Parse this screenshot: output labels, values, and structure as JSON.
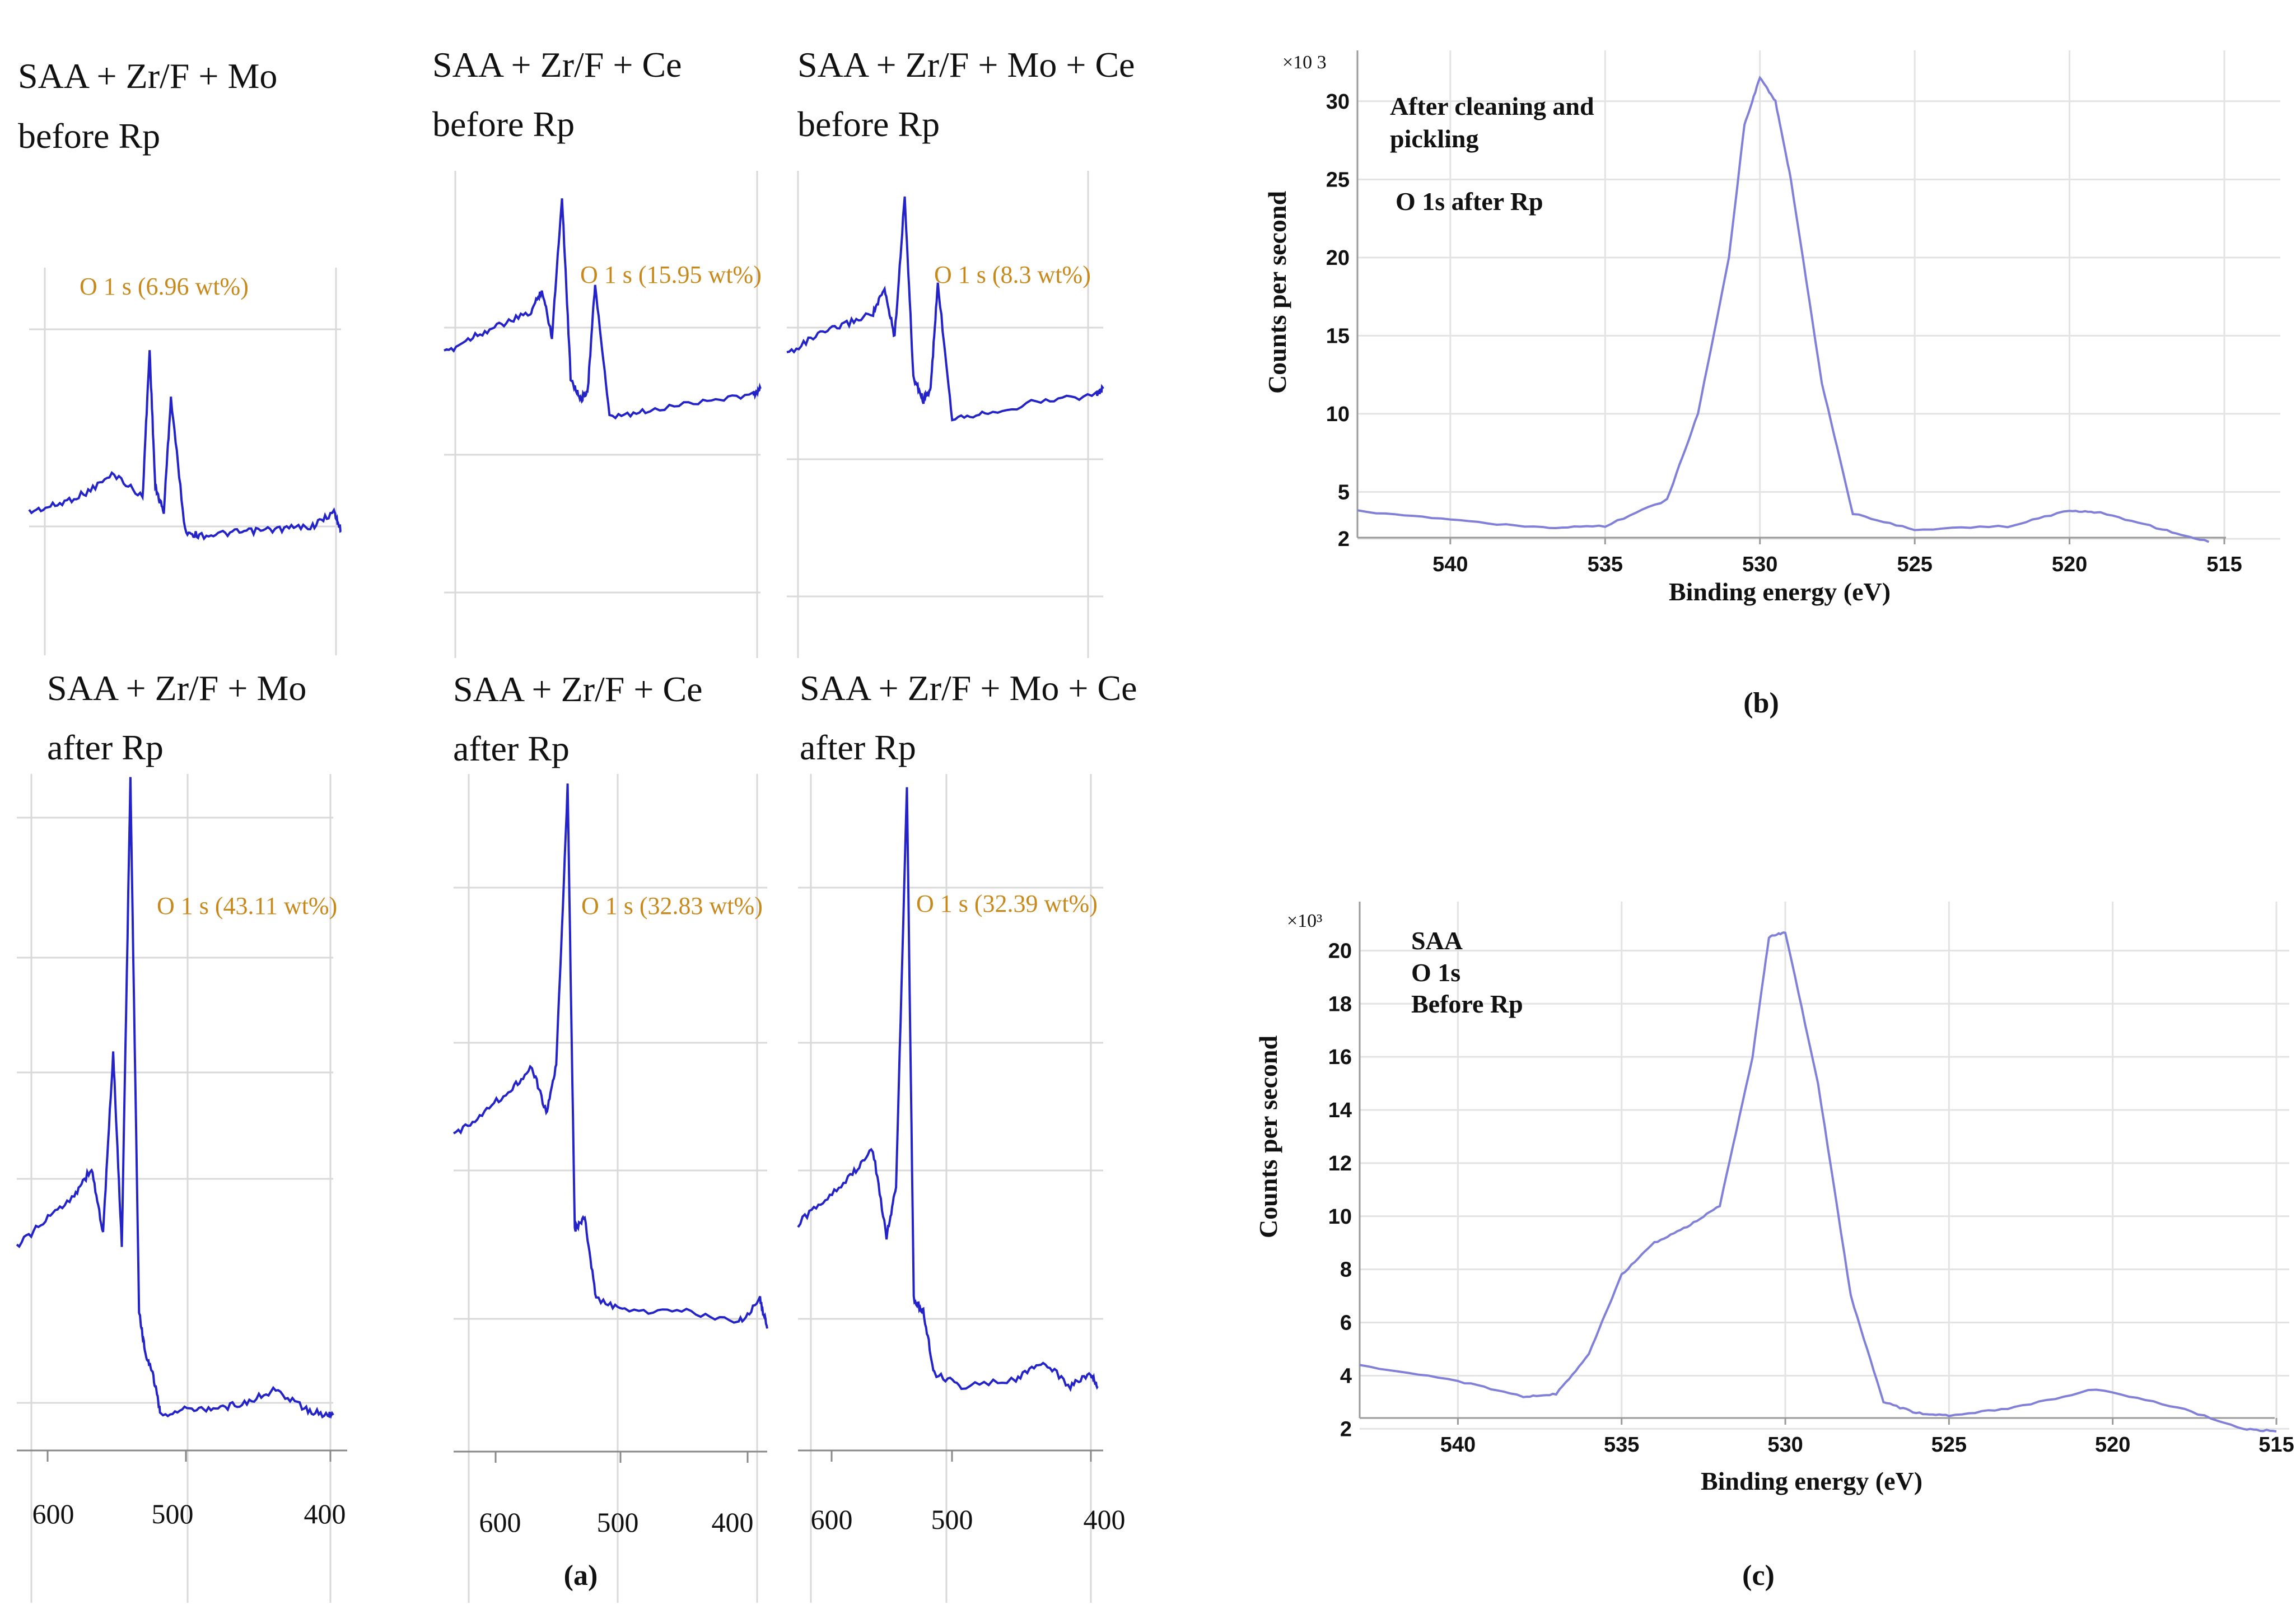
{
  "figure": {
    "caption_a": "(a)",
    "caption_b": "(b)",
    "caption_c": "(c)"
  },
  "panel_a": {
    "x_ticks": [
      "600",
      "500",
      "400"
    ],
    "plots": [
      {
        "title1": "SAA + Zr/F + Mo",
        "title2": "before Rp",
        "peak_label": "O 1 s (6.96 wt%)"
      },
      {
        "title1": "SAA + Zr/F + Ce",
        "title2": "before Rp",
        "peak_label": "O 1 s (15.95 wt%)"
      },
      {
        "title1": "SAA + Zr/F + Mo + Ce",
        "title2": "before Rp",
        "peak_label": "O 1 s (8.3 wt%)"
      },
      {
        "title1": "SAA + Zr/F + Mo",
        "title2": "after Rp",
        "peak_label": "O 1 s (43.11 wt%)"
      },
      {
        "title1": "SAA + Zr/F + Ce",
        "title2": "after Rp",
        "peak_label": "O 1 s (32.83 wt%)"
      },
      {
        "title1": "SAA + Zr/F + Mo + Ce",
        "title2": "after Rp",
        "peak_label": "O 1 s (32.39 wt%)"
      }
    ]
  },
  "panel_b": {
    "multiplier": "×10 3",
    "ylabel": "Counts per second",
    "xlabel": "Binding energy (eV)",
    "ann1": "After cleaning and",
    "ann2": "pickling",
    "ann3": "O 1s after Rp",
    "y_ticks": [
      "2",
      "5",
      "10",
      "15",
      "20",
      "25",
      "30"
    ],
    "x_ticks": [
      "540",
      "535",
      "530",
      "525",
      "520",
      "515"
    ]
  },
  "panel_c": {
    "multiplier": "×10³",
    "ylabel": "Counts per second",
    "xlabel": "Binding energy (eV)",
    "ann1": "SAA",
    "ann2": "O 1s",
    "ann3": "Before Rp",
    "y_ticks": [
      "2",
      "4",
      "6",
      "8",
      "10",
      "12",
      "14",
      "16",
      "18",
      "20"
    ],
    "x_ticks": [
      "540",
      "535",
      "530",
      "525",
      "520",
      "515"
    ]
  },
  "chart_data": [
    {
      "type": "line",
      "title": "SAA + Zr/F + Mo before Rp",
      "xlabel": "Binding energy (eV)",
      "annotation": "O 1 s (6.96 wt%)",
      "x": [
        620,
        600,
        580,
        560,
        540,
        535,
        531,
        525,
        520,
        510,
        500,
        480,
        460,
        440,
        420,
        405,
        400
      ],
      "y": [
        12,
        15,
        20,
        28,
        18,
        80,
        22,
        12,
        60,
        4,
        2,
        3,
        4,
        5,
        6,
        12,
        4
      ],
      "ylim": [
        0,
        100
      ]
    },
    {
      "type": "line",
      "title": "SAA + Zr/F + Ce before Rp",
      "xlabel": "Binding energy (eV)",
      "annotation": "O 1 s (15.95 wt%)",
      "x": [
        620,
        600,
        580,
        560,
        552,
        545,
        538,
        532,
        525,
        520,
        515,
        505,
        480,
        440,
        405,
        400
      ],
      "y": [
        42,
        48,
        52,
        56,
        64,
        48,
        96,
        34,
        26,
        30,
        66,
        20,
        22,
        26,
        28,
        30
      ],
      "ylim": [
        0,
        100
      ]
    },
    {
      "type": "line",
      "title": "SAA + Zr/F + Mo + Ce before Rp",
      "xlabel": "Binding energy (eV)",
      "annotation": "O 1 s (8.3 wt%)",
      "x": [
        620,
        600,
        580,
        560,
        552,
        545,
        538,
        532,
        525,
        520,
        515,
        505,
        480,
        440,
        405,
        400
      ],
      "y": [
        42,
        48,
        52,
        56,
        64,
        48,
        96,
        34,
        26,
        30,
        66,
        20,
        22,
        26,
        28,
        30
      ],
      "ylim": [
        0,
        100
      ]
    },
    {
      "type": "line",
      "title": "SAA + Zr/F + Mo after Rp",
      "xlabel": "Binding energy (eV)",
      "annotation": "O 1 s (43.11 wt%)",
      "x": [
        620,
        600,
        580,
        568,
        560,
        553,
        547,
        541,
        535,
        531,
        525,
        520,
        500,
        480,
        460,
        440,
        420,
        405,
        400
      ],
      "y": [
        28,
        32,
        36,
        40,
        30,
        58,
        28,
        100,
        18,
        12,
        8,
        2,
        3,
        3,
        4,
        6,
        3,
        2,
        2
      ],
      "ylim": [
        0,
        100
      ]
    },
    {
      "type": "line",
      "title": "SAA + Zr/F + Ce after Rp",
      "xlabel": "Binding energy (eV)",
      "annotation": "O 1 s (32.83 wt%)",
      "x": [
        620,
        600,
        580,
        565,
        555,
        548,
        540,
        535,
        528,
        520,
        500,
        460,
        420,
        405,
        400
      ],
      "y": [
        40,
        44,
        48,
        52,
        44,
        52,
        100,
        24,
        26,
        12,
        10,
        10,
        8,
        12,
        7
      ],
      "ylim": [
        0,
        100
      ]
    },
    {
      "type": "line",
      "title": "SAA + Zr/F + Mo + Ce after Rp",
      "xlabel": "Binding energy (eV)",
      "annotation": "O 1 s (32.39 wt%)",
      "x": [
        620,
        600,
        580,
        565,
        555,
        548,
        540,
        535,
        528,
        520,
        500,
        460,
        440,
        420,
        405,
        400
      ],
      "y": [
        30,
        34,
        38,
        42,
        28,
        36,
        100,
        18,
        16,
        6,
        4,
        5,
        8,
        4,
        6,
        4
      ],
      "ylim": [
        0,
        100
      ]
    },
    {
      "type": "line",
      "title": "O 1s after Rp (After cleaning and pickling)",
      "xlabel": "Binding energy (eV)",
      "ylabel": "Counts per second ×10^3",
      "x": [
        543,
        540,
        537,
        535,
        533,
        532,
        531,
        530.5,
        530,
        529.5,
        529,
        528,
        527,
        525,
        522,
        520,
        519,
        517,
        515.5
      ],
      "y": [
        3.8,
        3.2,
        2.7,
        2.8,
        4.5,
        10,
        20,
        28.5,
        31.5,
        30,
        25,
        12,
        3.6,
        2.6,
        2.8,
        3.8,
        3.7,
        2.6,
        1.8
      ],
      "xlim": [
        543,
        515
      ],
      "ylim": [
        1,
        32
      ]
    },
    {
      "type": "line",
      "title": "SAA O 1s Before Rp",
      "xlabel": "Binding energy (eV)",
      "ylabel": "Counts per second ×10^3",
      "x": [
        543,
        540,
        538,
        537,
        536,
        535,
        534,
        533,
        532,
        531,
        530.5,
        530,
        529,
        528,
        527,
        526,
        525,
        523,
        520.5,
        518,
        516,
        515
      ],
      "y": [
        4.4,
        3.8,
        3.2,
        3.3,
        4.8,
        7.8,
        9.0,
        9.6,
        10.4,
        16,
        20.5,
        20.7,
        15,
        7,
        3.0,
        2.6,
        2.5,
        2.8,
        3.5,
        2.8,
        2.0,
        1.9
      ],
      "xlim": [
        543,
        515
      ],
      "ylim": [
        1.5,
        21
      ]
    }
  ]
}
